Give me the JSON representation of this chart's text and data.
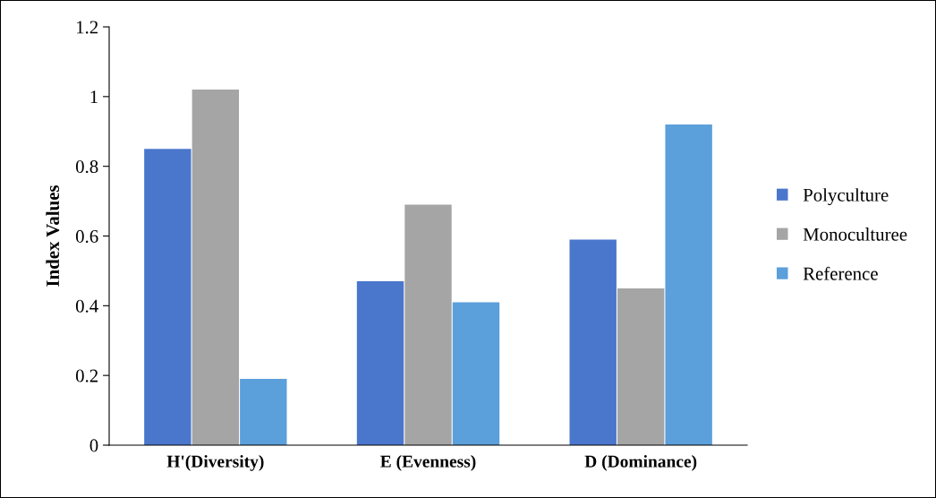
{
  "chart_data": {
    "type": "bar",
    "ylabel": "Index Values",
    "categories": [
      "H'(Diversity)",
      "E (Evenness)",
      "D (Dominance)"
    ],
    "series": [
      {
        "name": "Polyculture",
        "color": "#4a76cc",
        "values": [
          0.85,
          0.47,
          0.59
        ]
      },
      {
        "name": "Monoculturee",
        "color": "#a5a5a5",
        "values": [
          1.02,
          0.69,
          0.45
        ]
      },
      {
        "name": "Reference",
        "color": "#5b9fdb",
        "values": [
          0.19,
          0.41,
          0.92
        ]
      }
    ],
    "ylim": [
      0,
      1.2
    ],
    "yticks": [
      0,
      0.2,
      0.4,
      0.6,
      0.8,
      1,
      1.2
    ],
    "grid": false,
    "legend": "right"
  }
}
